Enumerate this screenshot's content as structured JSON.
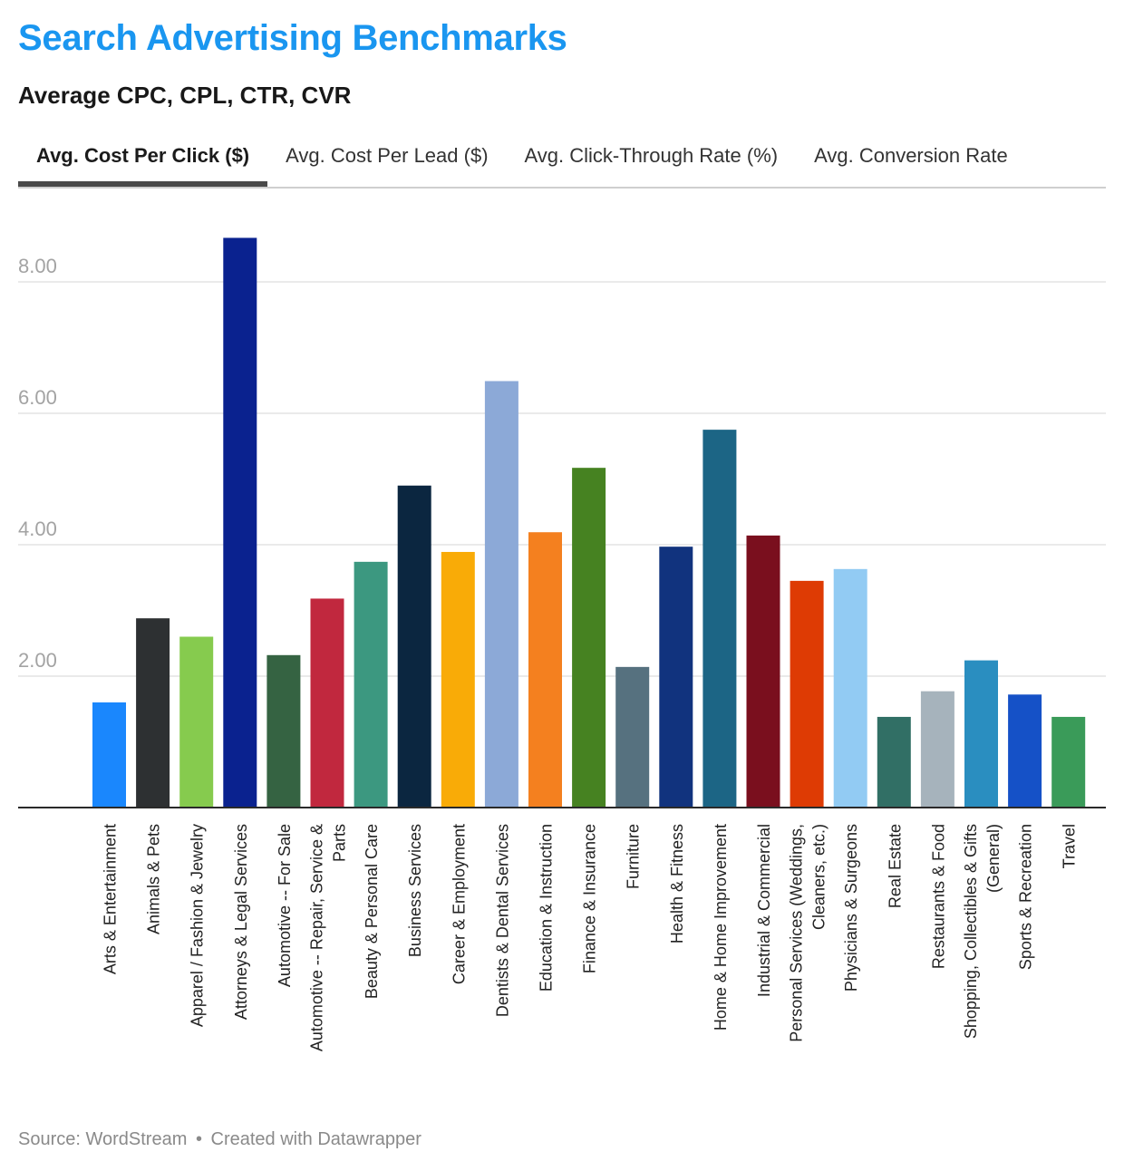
{
  "header": {
    "title": "Search Advertising Benchmarks",
    "subtitle": "Average CPC, CPL, CTR, CVR",
    "title_color": "#1a96f0"
  },
  "tabs": [
    {
      "label": "Avg. Cost Per Click ($)",
      "active": true
    },
    {
      "label": "Avg. Cost Per Lead ($)",
      "active": false
    },
    {
      "label": "Avg. Click-Through Rate (%)",
      "active": false
    },
    {
      "label": "Avg. Conversion Rate",
      "active": false
    }
  ],
  "footer": {
    "source": "Source: WordStream",
    "separator": "•",
    "credit": "Created with Datawrapper"
  },
  "chart_data": {
    "type": "bar",
    "ylim": [
      0,
      8.5
    ],
    "yticks": [
      "2.00",
      "4.00",
      "6.00",
      "8.00"
    ],
    "grid": true,
    "categories": [
      "Arts & Entertainment",
      "Animals & Pets",
      "Apparel / Fashion & Jewelry",
      "Attorneys & Legal Services",
      "Automotive -- For Sale",
      "Automotive -- Repair, Service & Parts",
      "Beauty & Personal Care",
      "Business Services",
      "Career & Employment",
      "Dentists & Dental Services",
      "Education & Instruction",
      "Finance & Insurance",
      "Furniture",
      "Health & Fitness",
      "Home & Home Improvement",
      "Industrial & Commercial",
      "Personal Services (Weddings, Cleaners, etc.)",
      "Physicians & Surgeons",
      "Real Estate",
      "Restaurants & Food",
      "Shopping, Collectibles & Gifts (General)",
      "Sports & Recreation",
      "Travel"
    ],
    "label_lines": [
      [
        "Arts & Entertainment"
      ],
      [
        "Animals & Pets"
      ],
      [
        "Apparel / Fashion & Jewelry"
      ],
      [
        "Attorneys & Legal Services"
      ],
      [
        "Automotive -- For Sale"
      ],
      [
        "Automotive -- Repair, Service &",
        "Parts"
      ],
      [
        "Beauty & Personal Care"
      ],
      [
        "Business Services"
      ],
      [
        "Career & Employment"
      ],
      [
        "Dentists & Dental Services"
      ],
      [
        "Education & Instruction"
      ],
      [
        "Finance & Insurance"
      ],
      [
        "Furniture"
      ],
      [
        "Health & Fitness"
      ],
      [
        "Home & Home Improvement"
      ],
      [
        "Industrial & Commercial"
      ],
      [
        "Personal Services (Weddings,",
        "Cleaners, etc.)"
      ],
      [
        "Physicians & Surgeons"
      ],
      [
        "Real Estate"
      ],
      [
        "Restaurants & Food"
      ],
      [
        "Shopping, Collectibles & Gifts",
        "(General)"
      ],
      [
        "Sports & Recreation"
      ],
      [
        "Travel"
      ]
    ],
    "values": [
      1.6,
      2.88,
      2.6,
      8.67,
      2.32,
      3.18,
      3.74,
      4.9,
      3.89,
      6.49,
      4.19,
      5.17,
      2.14,
      3.97,
      5.75,
      4.14,
      3.45,
      3.63,
      1.38,
      1.77,
      2.24,
      1.72,
      1.38
    ],
    "colors": [
      "#1a87fd",
      "#2d3032",
      "#86cb4e",
      "#0a228f",
      "#356342",
      "#c1283e",
      "#3c9880",
      "#0b2640",
      "#f9ab07",
      "#8ca9d7",
      "#f4801f",
      "#468221",
      "#56717f",
      "#11337e",
      "#1c6585",
      "#7a0f1e",
      "#de3b04",
      "#92cbf3",
      "#316f65",
      "#a6b3bc",
      "#2a8ec0",
      "#1551c7",
      "#3a9b59"
    ]
  }
}
